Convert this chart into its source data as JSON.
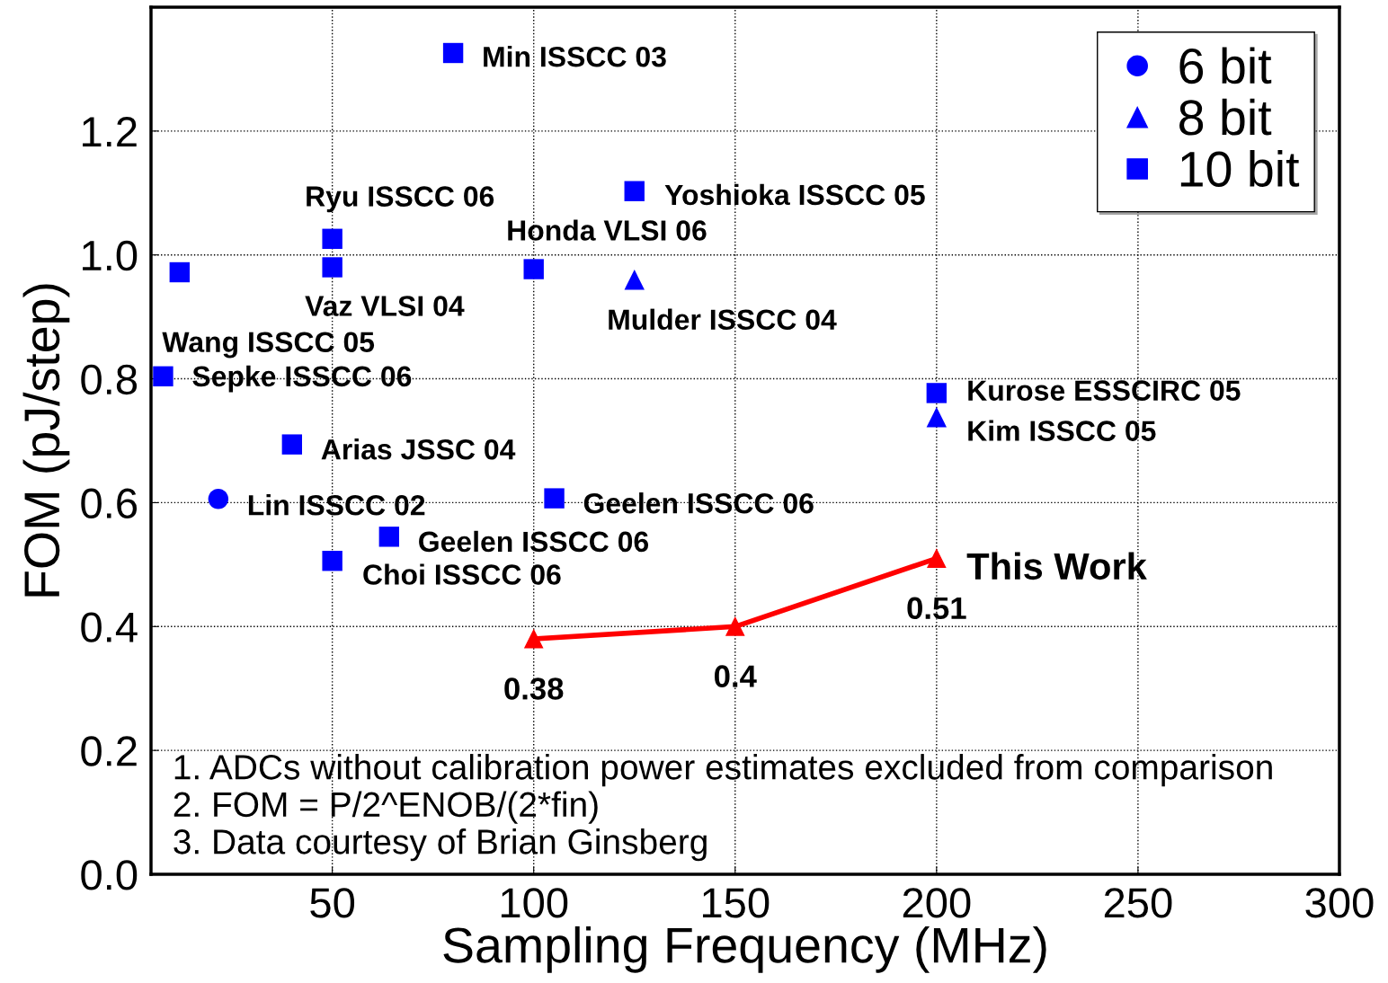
{
  "chart_data": {
    "type": "scatter",
    "xlabel": "Sampling Frequency (MHz)",
    "ylabel": "FOM (pJ/step)",
    "xlim": [
      5,
      300
    ],
    "xticks": [
      50,
      100,
      150,
      200,
      250,
      300
    ],
    "ylim": [
      0,
      1.4
    ],
    "yticks": [
      {
        "value": 0,
        "label": "0.0"
      },
      {
        "value": 0.2,
        "label": "0.2"
      },
      {
        "value": 0.4,
        "label": "0.4"
      },
      {
        "value": 0.6,
        "label": "0.6"
      },
      {
        "value": 0.8,
        "label": "0.8"
      },
      {
        "value": 1.0,
        "label": "1.0"
      },
      {
        "value": 1.2,
        "label": "1.2"
      }
    ],
    "grid": true,
    "legend": "top right",
    "series": [
      {
        "name": "6 bit",
        "marker": "circle",
        "color": "#0000ff",
        "x": [
          21.7
        ],
        "values": [
          0.606
        ]
      },
      {
        "name": "8 bit",
        "marker": "triangle",
        "color": "#0000ff",
        "x": [
          125,
          200
        ],
        "values": [
          0.96,
          0.738
        ]
      },
      {
        "name": "10 bit",
        "marker": "square",
        "color": "#0000ff",
        "x": [
          80,
          125,
          50,
          50,
          100,
          12.1,
          8,
          200,
          40,
          105.1,
          64.1,
          50
        ],
        "values": [
          1.326,
          1.103,
          1.026,
          0.98,
          0.977,
          0.972,
          0.804,
          0.777,
          0.694,
          0.607,
          0.545,
          0.506
        ]
      },
      {
        "type": "line",
        "marker": "triangle",
        "line_style": "solid",
        "color": "#ff0000",
        "x": [
          100,
          150,
          200
        ],
        "values": [
          0.38,
          0.4,
          0.51
        ],
        "value_labels": [
          "0.38",
          "0.4",
          "0.51"
        ]
      }
    ],
    "annotations": [
      {
        "text": "Min ISSCC 03",
        "x": 80,
        "y": 1.326
      },
      {
        "text": "Yoshioka ISSCC 05",
        "x": 125,
        "y": 1.103
      },
      {
        "text": "Ryu ISSCC 06",
        "x": 50,
        "y": 1.026
      },
      {
        "text": "Vaz VLSI 04",
        "x": 50,
        "y": 0.98
      },
      {
        "text": "Honda VLSI 06",
        "x": 100,
        "y": 0.977
      },
      {
        "text": "Mulder ISSCC 04",
        "x": 125,
        "y": 0.96
      },
      {
        "text": "Wang ISSCC 05",
        "x": 12.1,
        "y": 0.972
      },
      {
        "text": "Sepke ISSCC 06",
        "x": 8,
        "y": 0.804
      },
      {
        "text": "Kurose ESSCIRC 05",
        "x": 200,
        "y": 0.777
      },
      {
        "text": "Kim ISSCC 05",
        "x": 200,
        "y": 0.738
      },
      {
        "text": "Arias JSSC 04",
        "x": 40,
        "y": 0.694
      },
      {
        "text": "Lin ISSCC 02",
        "x": 21.7,
        "y": 0.606
      },
      {
        "text": "Geelen ISSCC 06",
        "x": 105.1,
        "y": 0.607
      },
      {
        "text": "Geelen ISSCC 06",
        "x": 64.1,
        "y": 0.545
      },
      {
        "text": "Choi ISSCC 06",
        "x": 50,
        "y": 0.506
      },
      {
        "text": "This Work",
        "x": 200,
        "y": 0.51
      },
      "1. ADCs without calibration power estimates excluded from comparison",
      "2. FOM = P/2^ENOB/(2*fin)",
      "3. Data courtesy of Brian Ginsberg"
    ]
  }
}
